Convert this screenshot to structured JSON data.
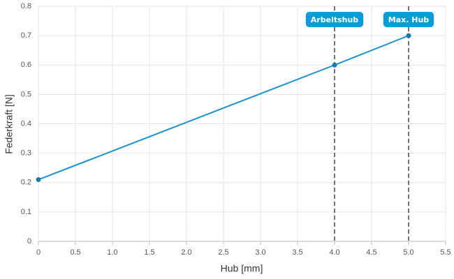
{
  "chart_data": {
    "type": "line",
    "x_label": "Hub [mm]",
    "y_label": "Federkraft [N]",
    "series": [
      {
        "name": "Federkraft",
        "color": "#1a90cf",
        "x": [
          0,
          4,
          5
        ],
        "values": [
          0.21,
          0.6,
          0.7
        ]
      }
    ],
    "xlim": [
      0,
      5.5
    ],
    "xticks": [
      0,
      0.5,
      {
        "value": 1,
        "label": "1.0"
      },
      1.5,
      {
        "value": 2,
        "label": "2.0"
      },
      2.5,
      {
        "value": 3,
        "label": "3.0"
      },
      3.5,
      {
        "value": 4,
        "label": "4.0"
      },
      4.5,
      {
        "value": 5,
        "label": "5.0"
      },
      5.5
    ],
    "ylim": [
      0,
      0.8
    ],
    "yticks": [
      0,
      0.1,
      0.2,
      0.3,
      0.4,
      0.5,
      0.6,
      0.7,
      0.8
    ],
    "grid": true,
    "annotations": [
      {
        "x": 4,
        "label": "Arbeitshub"
      },
      {
        "x": 5,
        "label": "Max. Hub"
      }
    ]
  }
}
